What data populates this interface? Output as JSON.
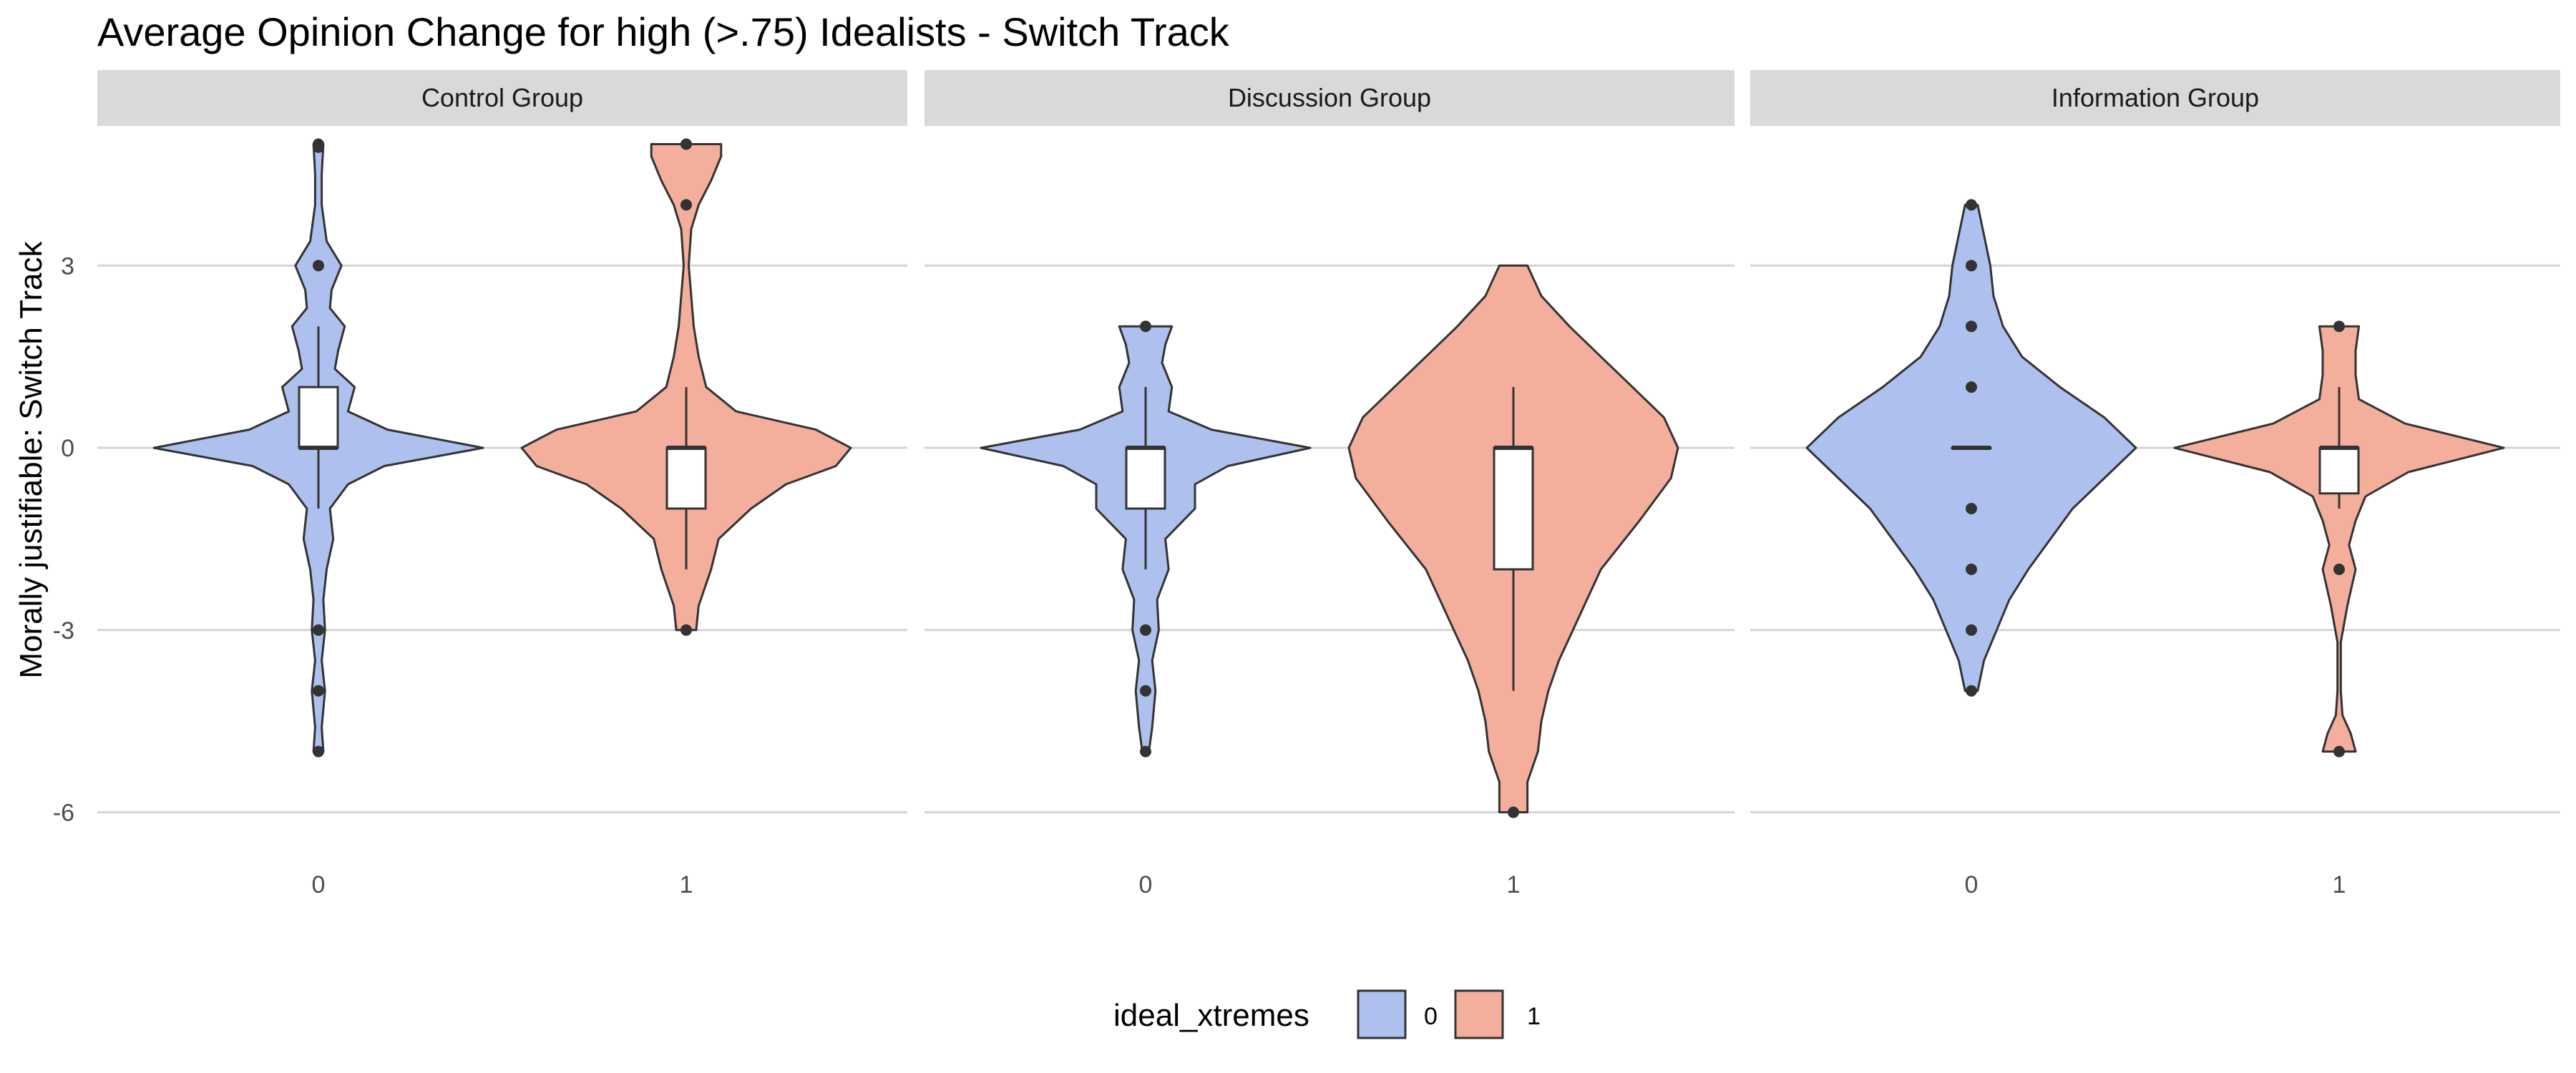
{
  "chart_data": {
    "type": "violin",
    "title": "Average Opinion Change for high (>.75) Idealists - Switch Track",
    "ylabel": "Morally justifiable: Switch Track",
    "xlabel": "",
    "ylim": [
      -6.5,
      5.3
    ],
    "yticks": [
      3,
      0,
      -3,
      -6
    ],
    "grid": true,
    "legend": {
      "title": "ideal_xtremes",
      "position": "bottom",
      "entries": [
        {
          "label": "0",
          "color": "#AEC0EE"
        },
        {
          "label": "1",
          "color": "#F4AE9C"
        }
      ]
    },
    "facets": [
      {
        "label": "Control Group",
        "groups": [
          {
            "x": "0",
            "fill": "#AEC0EE",
            "density": [
              [
                -5,
                0.03
              ],
              [
                -4.6,
                0.02
              ],
              [
                -4,
                0.04
              ],
              [
                -3.5,
                0.02
              ],
              [
                -3,
                0.04
              ],
              [
                -2.5,
                0.03
              ],
              [
                -2,
                0.05
              ],
              [
                -1.5,
                0.09
              ],
              [
                -1,
                0.07
              ],
              [
                -0.6,
                0.18
              ],
              [
                -0.3,
                0.4
              ],
              [
                0,
                1
              ],
              [
                0.3,
                0.42
              ],
              [
                0.6,
                0.18
              ],
              [
                1,
                0.22
              ],
              [
                1.3,
                0.1
              ],
              [
                1.6,
                0.12
              ],
              [
                2,
                0.16
              ],
              [
                2.3,
                0.07
              ],
              [
                2.6,
                0.08
              ],
              [
                3,
                0.14
              ],
              [
                3.4,
                0.05
              ],
              [
                4,
                0.02
              ],
              [
                4.5,
                0.02
              ],
              [
                5,
                0.03
              ]
            ],
            "box": {
              "q1": 0,
              "median": 0,
              "q3": 1,
              "lower": -1,
              "upper": 2
            },
            "outliers": [
              5,
              4.95,
              3,
              -3,
              -4,
              -5
            ]
          },
          {
            "x": "1",
            "fill": "#F4AE9C",
            "density": [
              [
                -3,
                0.04
              ],
              [
                -2.6,
                0.05
              ],
              [
                -2,
                0.1
              ],
              [
                -1.5,
                0.13
              ],
              [
                -1,
                0.26
              ],
              [
                -0.6,
                0.4
              ],
              [
                -0.3,
                0.6
              ],
              [
                0,
                0.66
              ],
              [
                0.3,
                0.52
              ],
              [
                0.6,
                0.2
              ],
              [
                1,
                0.08
              ],
              [
                1.5,
                0.05
              ],
              [
                2,
                0.03
              ],
              [
                3,
                0.01
              ],
              [
                3.6,
                0.02
              ],
              [
                4,
                0.05
              ],
              [
                4.4,
                0.1
              ],
              [
                4.8,
                0.14
              ],
              [
                5,
                0.14
              ]
            ],
            "box": {
              "q1": -1,
              "median": 0,
              "q3": 0,
              "lower": -2,
              "upper": 1
            },
            "outliers": [
              5,
              4,
              -3
            ]
          }
        ]
      },
      {
        "label": "Discussion Group",
        "groups": [
          {
            "x": "0",
            "fill": "#AEC0EE",
            "density": [
              [
                -5,
                0.02
              ],
              [
                -4.6,
                0.04
              ],
              [
                -4,
                0.06
              ],
              [
                -3.5,
                0.04
              ],
              [
                -3,
                0.08
              ],
              [
                -2.5,
                0.07
              ],
              [
                -2,
                0.14
              ],
              [
                -1.5,
                0.12
              ],
              [
                -1,
                0.3
              ],
              [
                -0.6,
                0.3
              ],
              [
                -0.3,
                0.5
              ],
              [
                0,
                1
              ],
              [
                0.3,
                0.4
              ],
              [
                0.6,
                0.14
              ],
              [
                1,
                0.16
              ],
              [
                1.4,
                0.1
              ],
              [
                1.7,
                0.12
              ],
              [
                2,
                0.16
              ]
            ],
            "box": {
              "q1": -1,
              "median": 0,
              "q3": 0,
              "lower": -2,
              "upper": 1
            },
            "outliers": [
              2,
              -3,
              -4,
              -5
            ]
          },
          {
            "x": "1",
            "fill": "#F4AE9C",
            "density": [
              [
                -6,
                0.04
              ],
              [
                -5.5,
                0.04
              ],
              [
                -5,
                0.07
              ],
              [
                -4.5,
                0.08
              ],
              [
                -4,
                0.1
              ],
              [
                -3.5,
                0.13
              ],
              [
                -3,
                0.17
              ],
              [
                -2,
                0.25
              ],
              [
                -1.2,
                0.36
              ],
              [
                -0.5,
                0.45
              ],
              [
                0,
                0.47
              ],
              [
                0.5,
                0.43
              ],
              [
                1,
                0.34
              ],
              [
                1.5,
                0.25
              ],
              [
                2,
                0.16
              ],
              [
                2.5,
                0.08
              ],
              [
                3,
                0.04
              ]
            ],
            "box": {
              "q1": -2,
              "median": 0,
              "q3": 0,
              "lower": -4,
              "upper": 1
            },
            "outliers": [
              -6
            ]
          }
        ]
      },
      {
        "label": "Information Group",
        "groups": [
          {
            "x": "0",
            "fill": "#AEC0EE",
            "density": [
              [
                -4,
                0.02
              ],
              [
                -3.5,
                0.04
              ],
              [
                -3,
                0.08
              ],
              [
                -2.5,
                0.12
              ],
              [
                -2,
                0.18
              ],
              [
                -1.5,
                0.25
              ],
              [
                -1,
                0.32
              ],
              [
                -0.5,
                0.42
              ],
              [
                0,
                0.52
              ],
              [
                0.5,
                0.42
              ],
              [
                1,
                0.28
              ],
              [
                1.5,
                0.16
              ],
              [
                2,
                0.1
              ],
              [
                2.5,
                0.07
              ],
              [
                3,
                0.06
              ],
              [
                3.5,
                0.04
              ],
              [
                4,
                0.02
              ]
            ],
            "box": {
              "q1": 0,
              "median": 0,
              "q3": 0,
              "lower": 0,
              "upper": 0
            },
            "outliers": [
              4,
              3,
              2,
              1,
              -1,
              -2,
              -3,
              -4
            ]
          },
          {
            "x": "1",
            "fill": "#F4AE9C",
            "density": [
              [
                -5,
                0.1
              ],
              [
                -4.7,
                0.07
              ],
              [
                -4.4,
                0.02
              ],
              [
                -4,
                0.01
              ],
              [
                -3.2,
                0.01
              ],
              [
                -2.6,
                0.05
              ],
              [
                -2,
                0.1
              ],
              [
                -1.6,
                0.06
              ],
              [
                -1.2,
                0.1
              ],
              [
                -0.8,
                0.16
              ],
              [
                -0.4,
                0.42
              ],
              [
                0,
                1
              ],
              [
                0.4,
                0.4
              ],
              [
                0.8,
                0.12
              ],
              [
                1.2,
                0.1
              ],
              [
                1.6,
                0.1
              ],
              [
                2,
                0.12
              ]
            ],
            "box": {
              "q1": -0.75,
              "median": 0,
              "q3": 0,
              "lower": -1,
              "upper": 1
            },
            "outliers": [
              2,
              -2,
              -5
            ]
          }
        ]
      }
    ]
  }
}
